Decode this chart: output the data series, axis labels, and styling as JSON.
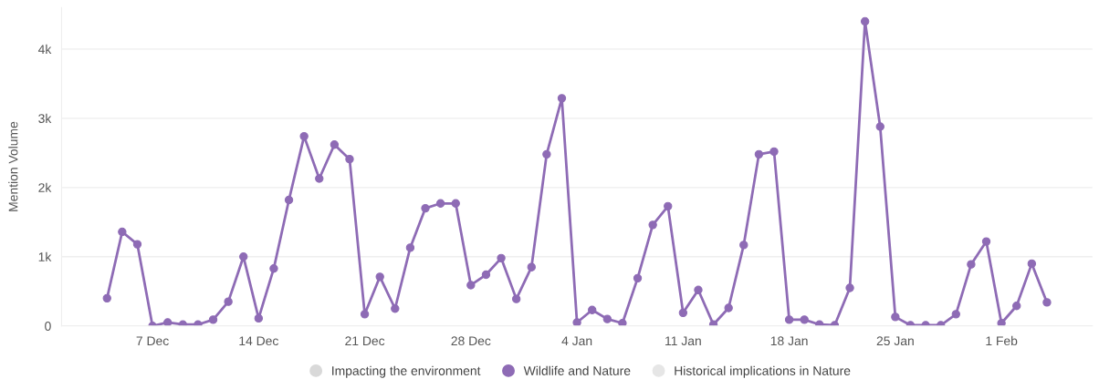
{
  "chart_data": {
    "type": "line",
    "ylabel": "Mention Volume",
    "categories": [
      null,
      null,
      null,
      "7 Dec",
      null,
      null,
      null,
      null,
      null,
      null,
      "14 Dec",
      null,
      null,
      null,
      null,
      null,
      null,
      "21 Dec",
      null,
      null,
      null,
      null,
      null,
      null,
      "28 Dec",
      null,
      null,
      null,
      null,
      null,
      null,
      "4 Jan",
      null,
      null,
      null,
      null,
      null,
      null,
      "11 Jan",
      null,
      null,
      null,
      null,
      null,
      null,
      "18 Jan",
      null,
      null,
      null,
      null,
      null,
      null,
      "25 Jan",
      null,
      null,
      null,
      null,
      null,
      null,
      "1 Feb",
      null,
      null,
      null
    ],
    "series": [
      {
        "name": "Impacting the environment",
        "color": "#d9d9d9",
        "values": [
          null,
          null,
          null,
          null,
          null,
          null,
          null,
          null,
          null,
          null,
          null,
          null,
          null,
          null,
          null,
          null,
          null,
          null,
          null,
          null,
          null,
          null,
          null,
          null,
          null,
          null,
          null,
          null,
          null,
          null,
          null,
          null,
          null,
          null,
          null,
          null,
          null,
          null,
          null,
          null,
          null,
          null,
          null,
          null,
          null,
          null,
          null,
          null,
          null,
          null,
          null,
          null,
          null,
          null,
          null,
          null,
          null,
          null,
          null,
          null,
          null,
          null,
          null
        ]
      },
      {
        "name": "Wildlife and Nature",
        "color": "#8e6bb5",
        "values": [
          400,
          1360,
          1180,
          0,
          50,
          20,
          20,
          90,
          350,
          1000,
          110,
          830,
          1820,
          2740,
          2130,
          2620,
          2410,
          170,
          710,
          250,
          1130,
          1700,
          1770,
          1770,
          590,
          740,
          980,
          390,
          850,
          2480,
          3290,
          50,
          230,
          100,
          40,
          690,
          1460,
          1730,
          190,
          520,
          20,
          260,
          1170,
          2480,
          2520,
          90,
          90,
          20,
          10,
          550,
          4400,
          2880,
          130,
          10,
          10,
          10,
          170,
          890,
          1220,
          40,
          290,
          900,
          340
        ]
      },
      {
        "name": "Historical implications in Nature",
        "color": "#e6e6e6",
        "values": [
          null,
          null,
          null,
          null,
          null,
          null,
          null,
          null,
          null,
          null,
          null,
          null,
          null,
          null,
          null,
          null,
          null,
          null,
          null,
          null,
          null,
          null,
          null,
          null,
          null,
          null,
          null,
          null,
          null,
          null,
          null,
          null,
          null,
          null,
          null,
          null,
          null,
          null,
          null,
          null,
          null,
          null,
          null,
          null,
          null,
          null,
          null,
          null,
          null,
          null,
          null,
          null,
          null,
          null,
          null,
          null,
          null,
          null,
          null,
          null,
          null,
          null,
          null
        ]
      }
    ],
    "ylim": [
      0,
      4600
    ],
    "yticks": [
      0,
      {
        "value": 1000,
        "label": "1k"
      },
      {
        "value": 2000,
        "label": "2k"
      },
      {
        "value": 3000,
        "label": "3k"
      },
      {
        "value": 4000,
        "label": "4k"
      }
    ],
    "grid": "y",
    "legend": "bottom",
    "marker": "circle",
    "line_style": "solid"
  }
}
